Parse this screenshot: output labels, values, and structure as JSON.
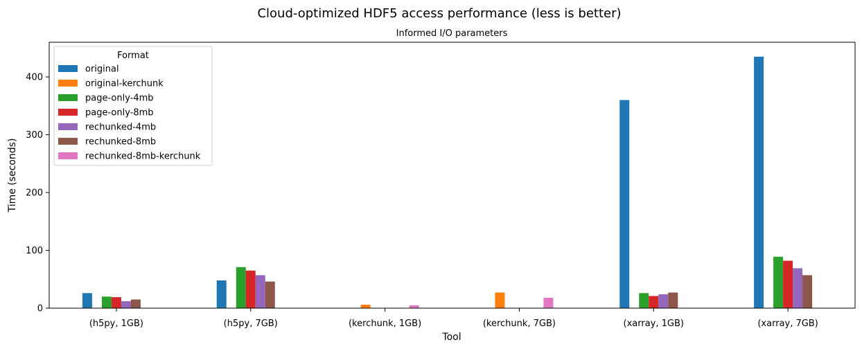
{
  "chart_data": {
    "type": "bar",
    "title": "Cloud-optimized HDF5 access performance (less is better)",
    "subtitle": "Informed I/O parameters",
    "xlabel": "Tool",
    "ylabel": "Time (seconds)",
    "ylim": [
      0,
      460
    ],
    "yticks": [
      0,
      100,
      200,
      300,
      400
    ],
    "grid": false,
    "legend_title": "Format",
    "legend_position": "top-left",
    "categories": [
      "(h5py, 1GB)",
      "(h5py, 7GB)",
      "(kerchunk, 1GB)",
      "(kerchunk, 7GB)",
      "(xarray, 1GB)",
      "(xarray, 7GB)"
    ],
    "series": [
      {
        "name": "original",
        "color": "#1f77b4",
        "values": [
          26,
          48,
          null,
          null,
          360,
          435
        ]
      },
      {
        "name": "original-kerchunk",
        "color": "#ff7f0e",
        "values": [
          null,
          null,
          6,
          27,
          null,
          null
        ]
      },
      {
        "name": "page-only-4mb",
        "color": "#2ca02c",
        "values": [
          20,
          71,
          null,
          null,
          26,
          89
        ]
      },
      {
        "name": "page-only-8mb",
        "color": "#d62728",
        "values": [
          19,
          65,
          null,
          null,
          21,
          82
        ]
      },
      {
        "name": "rechunked-4mb",
        "color": "#9467bd",
        "values": [
          12,
          57,
          null,
          null,
          24,
          69
        ]
      },
      {
        "name": "rechunked-8mb",
        "color": "#8c564b",
        "values": [
          15,
          46,
          null,
          null,
          27,
          57
        ]
      },
      {
        "name": "rechunked-8mb-kerchunk",
        "color": "#e377c2",
        "values": [
          null,
          null,
          5,
          18,
          null,
          null
        ]
      }
    ]
  }
}
